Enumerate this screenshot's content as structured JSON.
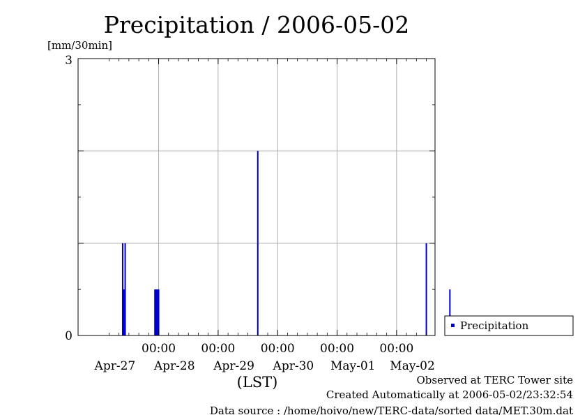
{
  "chart_data": {
    "type": "bar",
    "title": "Precipitation / 2006-05-02",
    "ylabel": "[mm/30min]",
    "xlabel": "(LST)",
    "ylim": [
      0,
      3
    ],
    "y_ticks": [
      "3",
      "0"
    ],
    "grid": true,
    "legend_position": "right",
    "series": [
      {
        "name": "Precipitation",
        "color": "#0000cc",
        "points": [
          {
            "x": "2006-04-27 09:30",
            "y": 1.0
          },
          {
            "x": "2006-04-27 10:00",
            "y": 0.5
          },
          {
            "x": "2006-04-27 10:30",
            "y": 1.0
          },
          {
            "x": "2006-04-27 22:30",
            "y": 0.5
          },
          {
            "x": "2006-04-27 23:00",
            "y": 0.5
          },
          {
            "x": "2006-04-27 23:30",
            "y": 0.5
          },
          {
            "x": "2006-04-28 00:00",
            "y": 0.5
          },
          {
            "x": "2006-04-29 16:00",
            "y": 2.0
          },
          {
            "x": "2006-05-02 12:00",
            "y": 1.0
          },
          {
            "x": "2006-05-02 21:30",
            "y": 0.5
          }
        ]
      }
    ],
    "x_axis": {
      "range": [
        "2006-04-27 00:00",
        "2006-05-03 00:00"
      ],
      "time_labels": [
        "00:00",
        "00:00",
        "00:00",
        "00:00",
        "00:00"
      ],
      "date_labels": [
        "Apr-27",
        "Apr-28",
        "Apr-29",
        "Apr-30",
        "May-01",
        "May-02"
      ]
    }
  },
  "footer": {
    "line1": "Observed at TERC Tower site",
    "line2": "Created Automatically at 2006-05-02/23:32:54",
    "line3": "Data source : /home/hoivo/new/TERC-data/sorted  data/MET.30m.dat"
  }
}
